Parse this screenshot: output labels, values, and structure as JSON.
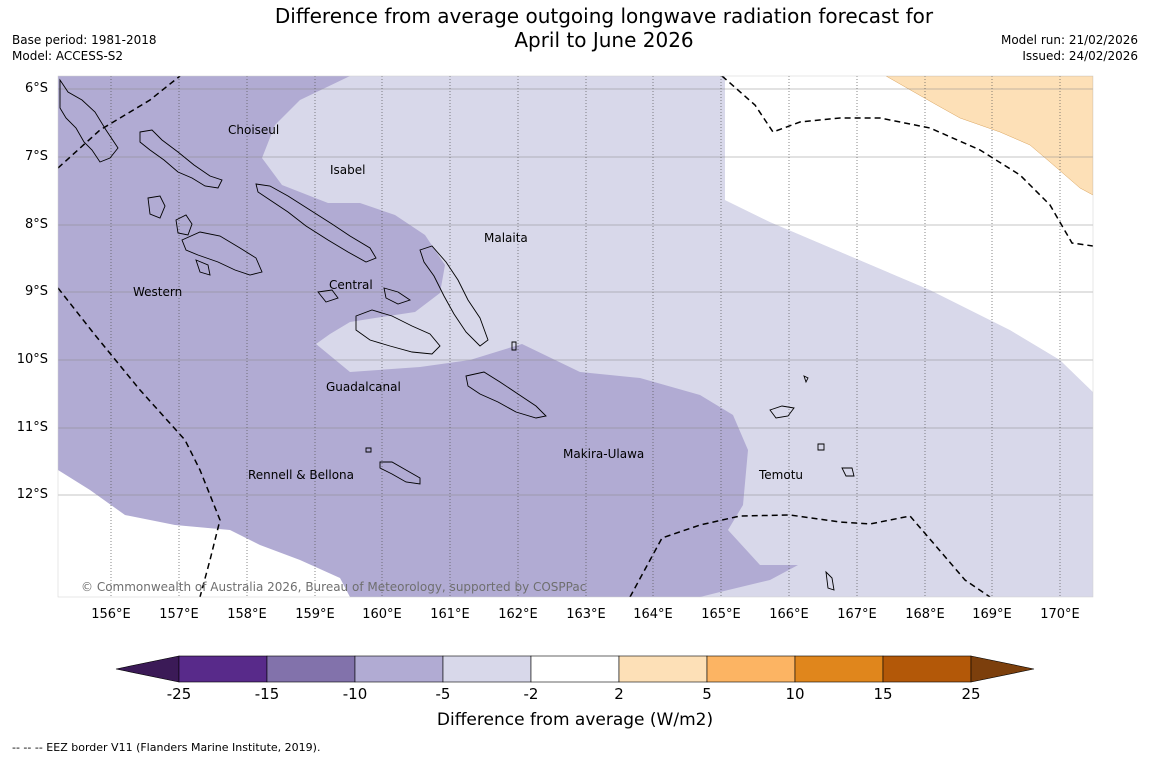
{
  "title": {
    "line1": "Difference from average outgoing longwave radiation forecast for",
    "line2": "April to June 2026"
  },
  "meta": {
    "base_period": "Base period: 1981-2018",
    "model": "Model: ACCESS-S2",
    "model_run": "Model run: 21/02/2026",
    "issued": "Issued: 24/02/2026"
  },
  "credit": "© Commonwealth of Australia 2026, Bureau of Meteorology, supported by COSPPac",
  "latitude_labels": [
    "6°S",
    "7°S",
    "8°S",
    "9°S",
    "10°S",
    "11°S",
    "12°S"
  ],
  "longitude_labels": [
    "156°E",
    "157°E",
    "158°E",
    "159°E",
    "160°E",
    "161°E",
    "162°E",
    "163°E",
    "164°E",
    "165°E",
    "166°E",
    "167°E",
    "168°E",
    "169°E",
    "170°E"
  ],
  "places": {
    "choiseul": "Choiseul",
    "isabel": "Isabel",
    "malaita": "Malaita",
    "western": "Western",
    "central": "Central",
    "guadalcanal": "Guadalcanal",
    "makira": "Makira-Ulawa",
    "rennell": "Rennell & Bellona",
    "temotu": "Temotu"
  },
  "colorbar": {
    "labels": [
      "-25",
      "-15",
      "-10",
      "-5",
      "-2",
      "2",
      "5",
      "10",
      "15",
      "25"
    ],
    "colors": {
      "below_min": "#3b1a57",
      "bins": [
        "#582a8a",
        "#8272ab",
        "#b1abd3",
        "#d8d8ea",
        "#ffffff",
        "#fde0b7",
        "#fcb463",
        "#e0861c",
        "#b35808"
      ],
      "above_max": "#7c3f0c"
    },
    "title": "Difference from average (W/m2)"
  },
  "footnote": "--  --  -- EEZ border V11 (Flanders Marine Institute, 2019)."
}
